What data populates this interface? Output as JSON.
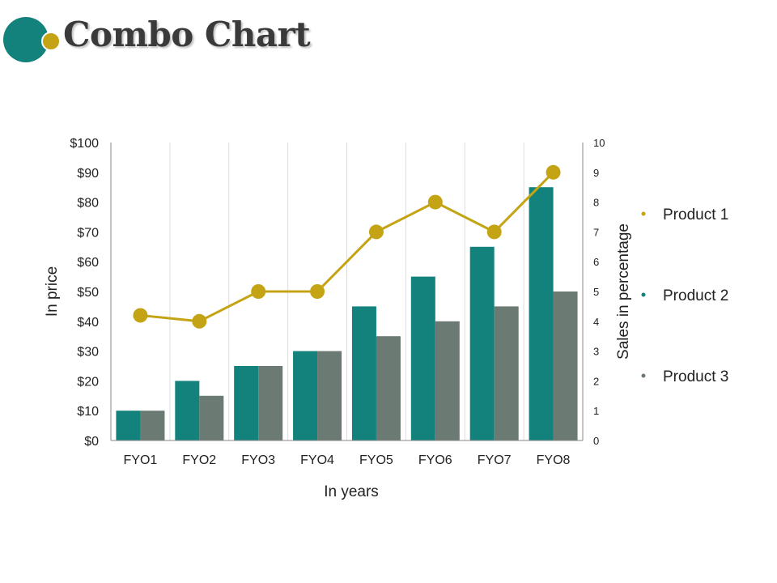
{
  "title": "Combo Chart",
  "colors": {
    "teal": "#13827c",
    "gray": "#6b7a72",
    "gold": "#c4a414",
    "grid": "#dddddd"
  },
  "chart_data": {
    "type": "bar",
    "categories": [
      "FYO1",
      "FYO2",
      "FYO3",
      "FYO4",
      "FYO5",
      "FYO6",
      "FYO7",
      "FYO8"
    ],
    "series": [
      {
        "name": "Product 1",
        "type": "line",
        "axis": "right",
        "color": "#c4a414",
        "values": [
          4.2,
          4,
          5,
          5,
          7,
          8,
          7,
          9
        ]
      },
      {
        "name": "Product 2",
        "type": "bar",
        "axis": "left",
        "color": "#13827c",
        "values": [
          10,
          20,
          25,
          30,
          45,
          55,
          65,
          85
        ]
      },
      {
        "name": "Product 3",
        "type": "bar",
        "axis": "left",
        "color": "#6b7a72",
        "values": [
          10,
          15,
          25,
          30,
          35,
          40,
          45,
          50
        ]
      }
    ],
    "xlabel": "In years",
    "ylabel": "In price",
    "y2label": "Sales in percentage",
    "ylim": [
      0,
      100
    ],
    "y2lim": [
      0,
      10
    ],
    "yticks": [
      "$0",
      "$10",
      "$20",
      "$30",
      "$40",
      "$50",
      "$60",
      "$70",
      "$80",
      "$90",
      "$100"
    ],
    "y2ticks": [
      "0",
      "1",
      "2",
      "3",
      "4",
      "5",
      "6",
      "7",
      "8",
      "9",
      "10"
    ],
    "grid": "vertical",
    "legend_position": "right"
  }
}
